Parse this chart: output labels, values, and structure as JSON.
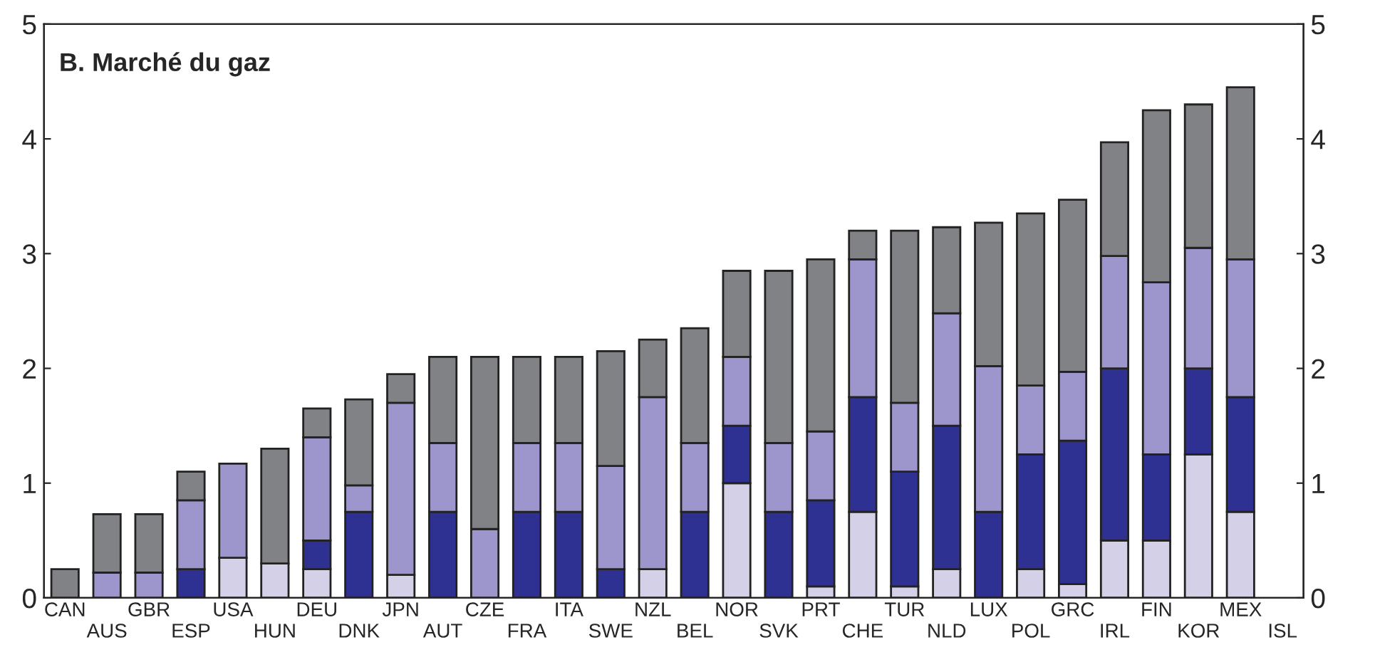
{
  "chart_data": {
    "type": "bar",
    "title": "B. Marché du gaz",
    "stacked": true,
    "categories": [
      "CAN",
      "AUS",
      "GBR",
      "ESP",
      "USA",
      "HUN",
      "DEU",
      "DNK",
      "JPN",
      "AUT",
      "CZE",
      "FRA",
      "ITA",
      "SWE",
      "NZL",
      "BEL",
      "NOR",
      "SVK",
      "PRT",
      "CHE",
      "TUR",
      "NLD",
      "LUX",
      "POL",
      "GRC",
      "IRL",
      "FIN",
      "KOR",
      "MEX",
      "ISL"
    ],
    "series": [
      {
        "color": "#d4d0e8",
        "values": [
          null,
          null,
          null,
          null,
          0.35,
          0.3,
          0.25,
          null,
          0.2,
          null,
          null,
          null,
          null,
          null,
          0.25,
          null,
          1.0,
          null,
          0.1,
          0.75,
          0.1,
          0.25,
          null,
          0.25,
          0.12,
          0.5,
          0.5,
          1.25,
          0.75,
          null
        ]
      },
      {
        "color": "#2e3192",
        "values": [
          null,
          null,
          null,
          0.25,
          null,
          null,
          0.25,
          0.75,
          null,
          0.75,
          null,
          0.75,
          0.75,
          0.25,
          null,
          0.75,
          0.5,
          0.75,
          0.75,
          1.0,
          1.0,
          1.25,
          0.75,
          1.0,
          1.25,
          1.5,
          0.75,
          0.75,
          1.0,
          null
        ]
      },
      {
        "color": "#9c96cc",
        "values": [
          null,
          0.22,
          0.22,
          0.6,
          0.82,
          null,
          0.9,
          0.23,
          1.5,
          0.6,
          0.6,
          0.6,
          0.6,
          0.9,
          1.5,
          0.6,
          0.6,
          0.6,
          0.6,
          1.2,
          0.6,
          0.98,
          1.27,
          0.6,
          0.6,
          0.98,
          1.5,
          1.05,
          1.2,
          null
        ]
      },
      {
        "color": "#808285",
        "values": [
          0.25,
          0.51,
          0.51,
          0.25,
          null,
          1.0,
          0.25,
          0.75,
          0.25,
          0.75,
          1.5,
          0.75,
          0.75,
          1.0,
          0.5,
          1.0,
          0.75,
          1.5,
          1.5,
          0.25,
          1.5,
          0.75,
          1.25,
          1.5,
          1.5,
          0.99,
          1.5,
          1.25,
          1.5,
          null
        ]
      }
    ],
    "ylim": [
      0,
      5
    ],
    "y2lim": [
      0,
      5
    ],
    "yticks": [
      0,
      1,
      2,
      3,
      4,
      5
    ],
    "y2ticks": [
      0,
      1,
      2,
      3,
      4,
      5
    ],
    "grid": false,
    "legend": false
  }
}
